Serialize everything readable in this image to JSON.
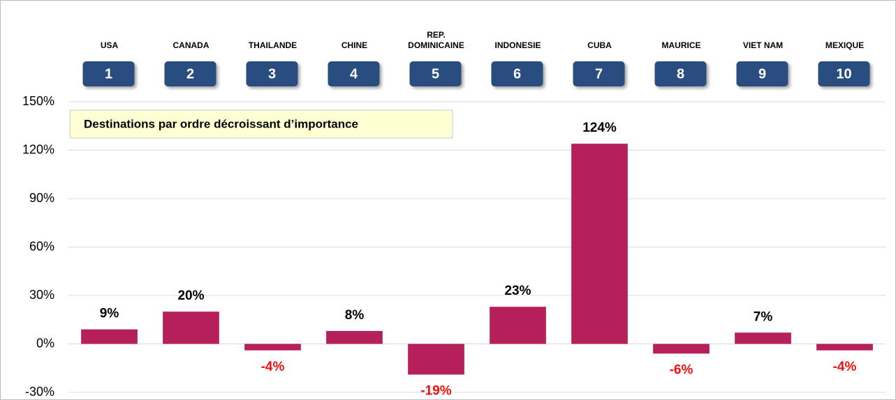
{
  "chart_data": {
    "type": "bar",
    "categories": [
      "USA",
      "CANADA",
      "THAILANDE",
      "CHINE",
      "REP. DOMINICAINE",
      "INDONESIE",
      "CUBA",
      "MAURICE",
      "VIET NAM",
      "MEXIQUE"
    ],
    "ranks": [
      1,
      2,
      3,
      4,
      5,
      6,
      7,
      8,
      9,
      10
    ],
    "values": [
      9,
      20,
      -4,
      8,
      -19,
      23,
      124,
      -6,
      7,
      -4
    ],
    "value_labels": [
      "9%",
      "20%",
      "-4%",
      "8%",
      "-19%",
      "23%",
      "124%",
      "-6%",
      "7%",
      "-4%"
    ],
    "color": "#b5205a",
    "negative_label_color": "#ee1111",
    "annotation": "Destinations par ordre décroissant d’importance",
    "ylim": [
      -30,
      150
    ],
    "yticks": [
      {
        "value": -30,
        "label": "-30%"
      },
      {
        "value": 0,
        "label": "0%"
      },
      {
        "value": 30,
        "label": "30%"
      },
      {
        "value": 60,
        "label": "60%"
      },
      {
        "value": 90,
        "label": "90%"
      },
      {
        "value": 120,
        "label": "120%"
      },
      {
        "value": 150,
        "label": "150%"
      }
    ],
    "grid": true
  }
}
